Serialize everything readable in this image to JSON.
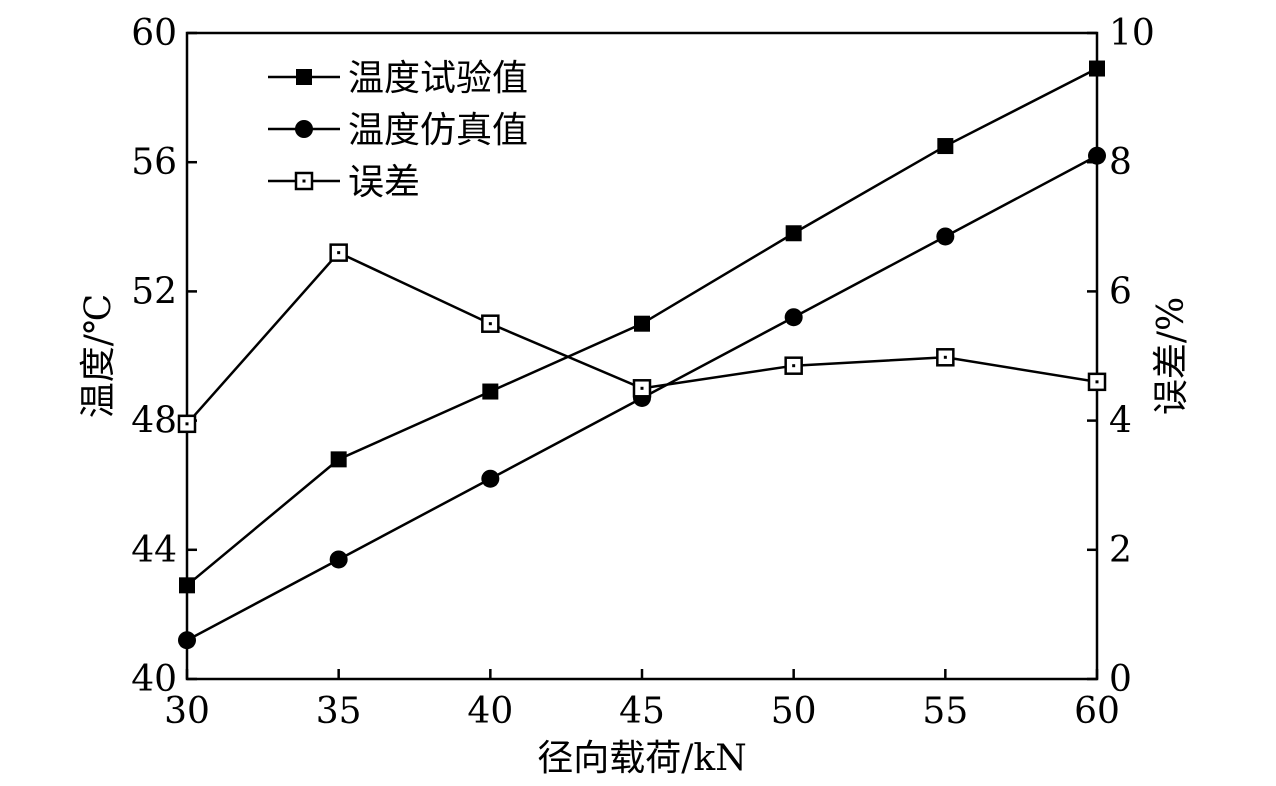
{
  "chart_data": {
    "type": "line",
    "x": [
      30,
      35,
      40,
      45,
      50,
      55,
      60
    ],
    "xlabel": "径向载荷/kN",
    "ylabel_left": "温度/℃",
    "ylabel_right": "误差/%",
    "xlim": [
      30,
      60
    ],
    "ylim_left": [
      40,
      60
    ],
    "ylim_right": [
      0,
      10
    ],
    "xticks": [
      "30",
      "35",
      "40",
      "45",
      "50",
      "55",
      "60"
    ],
    "yticks_left": [
      "40",
      "44",
      "48",
      "52",
      "56",
      "60"
    ],
    "yticks_right": [
      "0",
      "2",
      "4",
      "6",
      "8",
      "10"
    ],
    "grid": false,
    "legend_position": "top-left",
    "series": [
      {
        "name": "温度试验值",
        "axis": "left",
        "marker": "filled-square",
        "values": [
          42.9,
          46.8,
          48.9,
          51.0,
          53.8,
          56.5,
          58.9
        ]
      },
      {
        "name": "温度仿真值",
        "axis": "left",
        "marker": "filled-circle",
        "values": [
          41.2,
          43.7,
          46.2,
          48.7,
          51.2,
          53.7,
          56.2
        ]
      },
      {
        "name": "误差",
        "axis": "right",
        "marker": "open-square",
        "values": [
          3.95,
          6.6,
          5.5,
          4.5,
          4.85,
          4.98,
          4.6
        ]
      }
    ]
  }
}
